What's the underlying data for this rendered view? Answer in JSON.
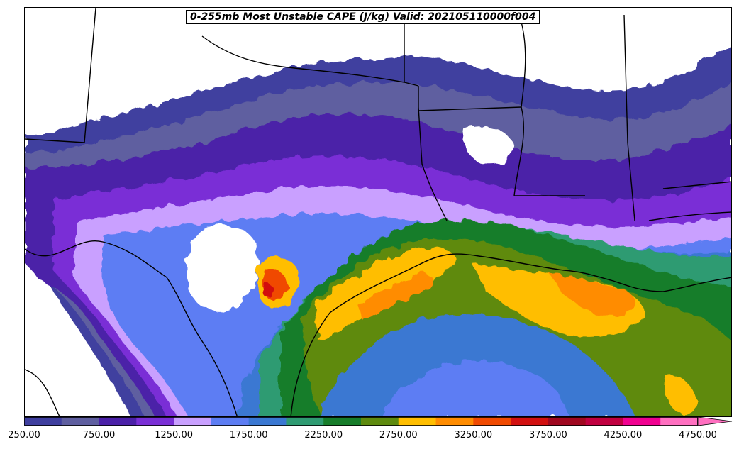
{
  "title": "0-255mb Most Unstable CAPE (J/kg) Valid: 202105110000f004",
  "colorbar": {
    "ticks": [
      "250.00",
      "750.00",
      "1250.00",
      "1750.00",
      "2250.00",
      "2750.00",
      "3250.00",
      "3750.00",
      "4250.00",
      "4750.00"
    ],
    "colors": [
      "#3f3f9f",
      "#5f5fa0",
      "#4b20a8",
      "#7a2fd6",
      "#c9a0ff",
      "#5d7df3",
      "#3a78d2",
      "#2f9b72",
      "#177d2a",
      "#5e8a0e",
      "#ffbe00",
      "#ff8c00",
      "#f04a00",
      "#d21010",
      "#a00820",
      "#c00040",
      "#f00090",
      "#ff6fc0"
    ]
  },
  "colors": {
    "land": "#ffffff",
    "border": "#000000"
  }
}
